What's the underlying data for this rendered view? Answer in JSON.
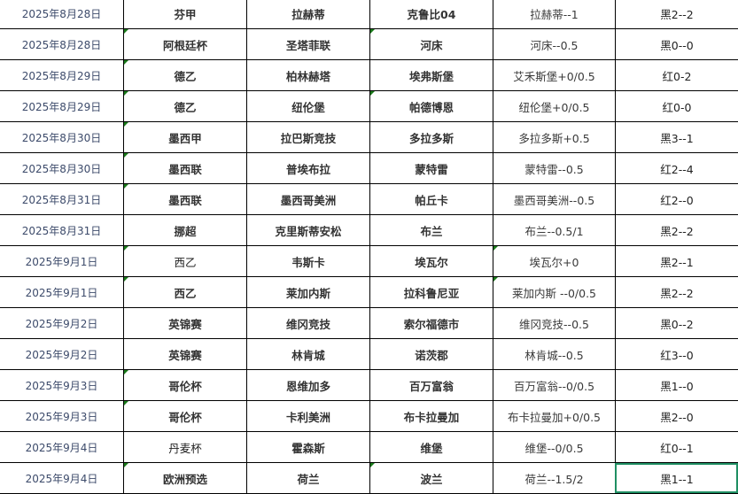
{
  "accent_colors": {
    "date_text": "#3d4b6b",
    "comment_marker": "#1a7a1a",
    "selection": "#1f8f63"
  },
  "selected_cell": {
    "row": 15,
    "column": "result"
  },
  "rows": [
    {
      "date": "2025年8月28日",
      "league": "芬甲",
      "home": "拉赫蒂",
      "away": "克鲁比04",
      "handicap": "拉赫蒂--1",
      "result": "黑2--2",
      "league_bold": true,
      "marks": []
    },
    {
      "date": "2025年8月28日",
      "league": "阿根廷杯",
      "home": "圣塔菲联",
      "away": "河床",
      "handicap": "河床--0.5",
      "result": "黑0--0",
      "league_bold": true,
      "marks": [
        "league",
        "away"
      ]
    },
    {
      "date": "2025年8月29日",
      "league": "德乙",
      "home": "柏林赫塔",
      "away": "埃弗斯堡",
      "handicap": "艾禾斯堡+0/0.5",
      "result": "红0-2",
      "league_bold": true,
      "marks": [
        "league"
      ]
    },
    {
      "date": "2025年8月29日",
      "league": "德乙",
      "home": "纽伦堡",
      "away": "帕德博恩",
      "handicap": "纽伦堡+0/0.5",
      "result": "红0-0",
      "league_bold": true,
      "marks": [
        "league",
        "away"
      ]
    },
    {
      "date": "2025年8月30日",
      "league": "墨西甲",
      "home": "拉巴斯竞技",
      "away": "多拉多斯",
      "handicap": "多拉多斯+0.5",
      "result": "黑3--1",
      "league_bold": true,
      "marks": [
        "league"
      ]
    },
    {
      "date": "2025年8月30日",
      "league": "墨西联",
      "home": "普埃布拉",
      "away": "蒙特雷",
      "handicap": "蒙特雷--0.5",
      "result": "红2--4",
      "league_bold": true,
      "marks": [
        "league"
      ]
    },
    {
      "date": "2025年8月31日",
      "league": "墨西联",
      "home": "墨西哥美洲",
      "away": "帕丘卡",
      "handicap": "墨西哥美洲--0.5",
      "result": "红2--0",
      "league_bold": true,
      "marks": [
        "league"
      ]
    },
    {
      "date": "2025年8月31日",
      "league": "挪超",
      "home": "克里斯蒂安松",
      "away": "布兰",
      "handicap": "布兰--0.5/1",
      "result": "黑2--2",
      "league_bold": true,
      "marks": []
    },
    {
      "date": "2025年9月1日",
      "league": "西乙",
      "home": "韦斯卡",
      "away": "埃瓦尔",
      "handicap": "埃瓦尔+0",
      "result": "黑2--1",
      "league_bold": false,
      "marks": [
        "league",
        "handicap"
      ]
    },
    {
      "date": "2025年9月1日",
      "league": "西乙",
      "home": "莱加内斯",
      "away": "拉科鲁尼亚",
      "handicap": "莱加内斯 --0/0.5",
      "result": "黑2--2",
      "league_bold": true,
      "marks": [
        "league",
        "handicap"
      ]
    },
    {
      "date": "2025年9月2日",
      "league": "英锦赛",
      "home": "维冈竞技",
      "away": "索尔福德市",
      "handicap": "维冈竞技--0.5",
      "result": "黑0--2",
      "league_bold": true,
      "marks": []
    },
    {
      "date": "2025年9月2日",
      "league": "英锦赛",
      "home": "林肯城",
      "away": "诺茨郡",
      "handicap": "林肯城--0.5",
      "result": "红3--0",
      "league_bold": true,
      "marks": []
    },
    {
      "date": "2025年9月3日",
      "league": "哥伦杯",
      "home": "恩维加多",
      "away": "百万富翁",
      "handicap": "百万富翁--0/0.5",
      "result": "黑1--0",
      "league_bold": true,
      "marks": [
        "league"
      ]
    },
    {
      "date": "2025年9月3日",
      "league": "哥伦杯",
      "home": "卡利美洲",
      "away": "布卡拉曼加",
      "handicap": "布卡拉曼加+0/0.5",
      "result": "黑2--0",
      "league_bold": true,
      "marks": [
        "league"
      ]
    },
    {
      "date": "2025年9月4日",
      "league": "丹麦杯",
      "home": "霍森斯",
      "away": "维堡",
      "handicap": "维堡--0/0.5",
      "result": "红0--1",
      "league_bold": false,
      "marks": []
    },
    {
      "date": "2025年9月4日",
      "league": "欧洲预选",
      "home": "荷兰",
      "away": "波兰",
      "handicap": "荷兰--1.5/2",
      "result": "黑1--1",
      "league_bold": true,
      "marks": [
        "league",
        "away"
      ]
    }
  ]
}
